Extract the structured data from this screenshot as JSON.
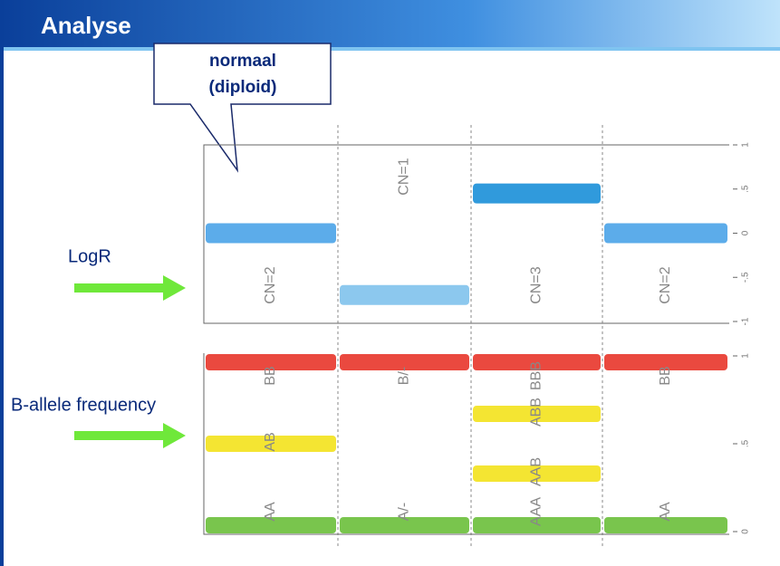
{
  "slide": {
    "title": "Analyse",
    "callout": [
      "normaal",
      "(diploid)"
    ],
    "row_labels": [
      "LogR",
      "B-allele frequency"
    ]
  },
  "chart_data": [
    {
      "type": "segments",
      "ylim": [
        -1,
        1
      ],
      "yticks": [
        -1,
        {
          "value": -0.5,
          "label": "-.5"
        },
        0,
        {
          "value": 0.5,
          "label": ".5"
        },
        1
      ],
      "columns": [
        {
          "label": "CN=2",
          "bands": [
            {
              "value": 0,
              "color": "#4aa3e8"
            }
          ]
        },
        {
          "label": "CN=1",
          "bands": [
            {
              "value": -0.7,
              "color": "#80c2ec"
            }
          ]
        },
        {
          "label": "CN=3",
          "bands": [
            {
              "value": 0.45,
              "color": "#1a8fd8"
            }
          ]
        },
        {
          "label": "CN=2",
          "bands": [
            {
              "value": 0,
              "color": "#4aa3e8"
            }
          ]
        }
      ]
    },
    {
      "type": "segments",
      "ylim": [
        0,
        1
      ],
      "yticks": [
        0,
        {
          "value": 0.5,
          "label": ".5"
        },
        1
      ],
      "columns": [
        {
          "bands": [
            {
              "label": "AA",
              "value": 0,
              "color": "#6abf3a"
            },
            {
              "label": "AB",
              "value": 0.5,
              "color": "#f3e21c"
            },
            {
              "label": "BB",
              "value": 1,
              "color": "#e8352a"
            }
          ]
        },
        {
          "bands": [
            {
              "label": "A/-",
              "value": 0,
              "color": "#6abf3a"
            },
            {
              "label": "B/-",
              "value": 1,
              "color": "#e8352a"
            }
          ]
        },
        {
          "bands": [
            {
              "label": "AAA",
              "value": 0,
              "color": "#6abf3a"
            },
            {
              "label": "AAB",
              "value": 0.33,
              "color": "#f3e21c"
            },
            {
              "label": "ABB",
              "value": 0.67,
              "color": "#f3e21c"
            },
            {
              "label": "BBB",
              "value": 1,
              "color": "#e8352a"
            }
          ]
        },
        {
          "bands": [
            {
              "label": "AA",
              "value": 0,
              "color": "#6abf3a"
            },
            {
              "label": "BB",
              "value": 1,
              "color": "#e8352a"
            }
          ]
        }
      ]
    }
  ]
}
